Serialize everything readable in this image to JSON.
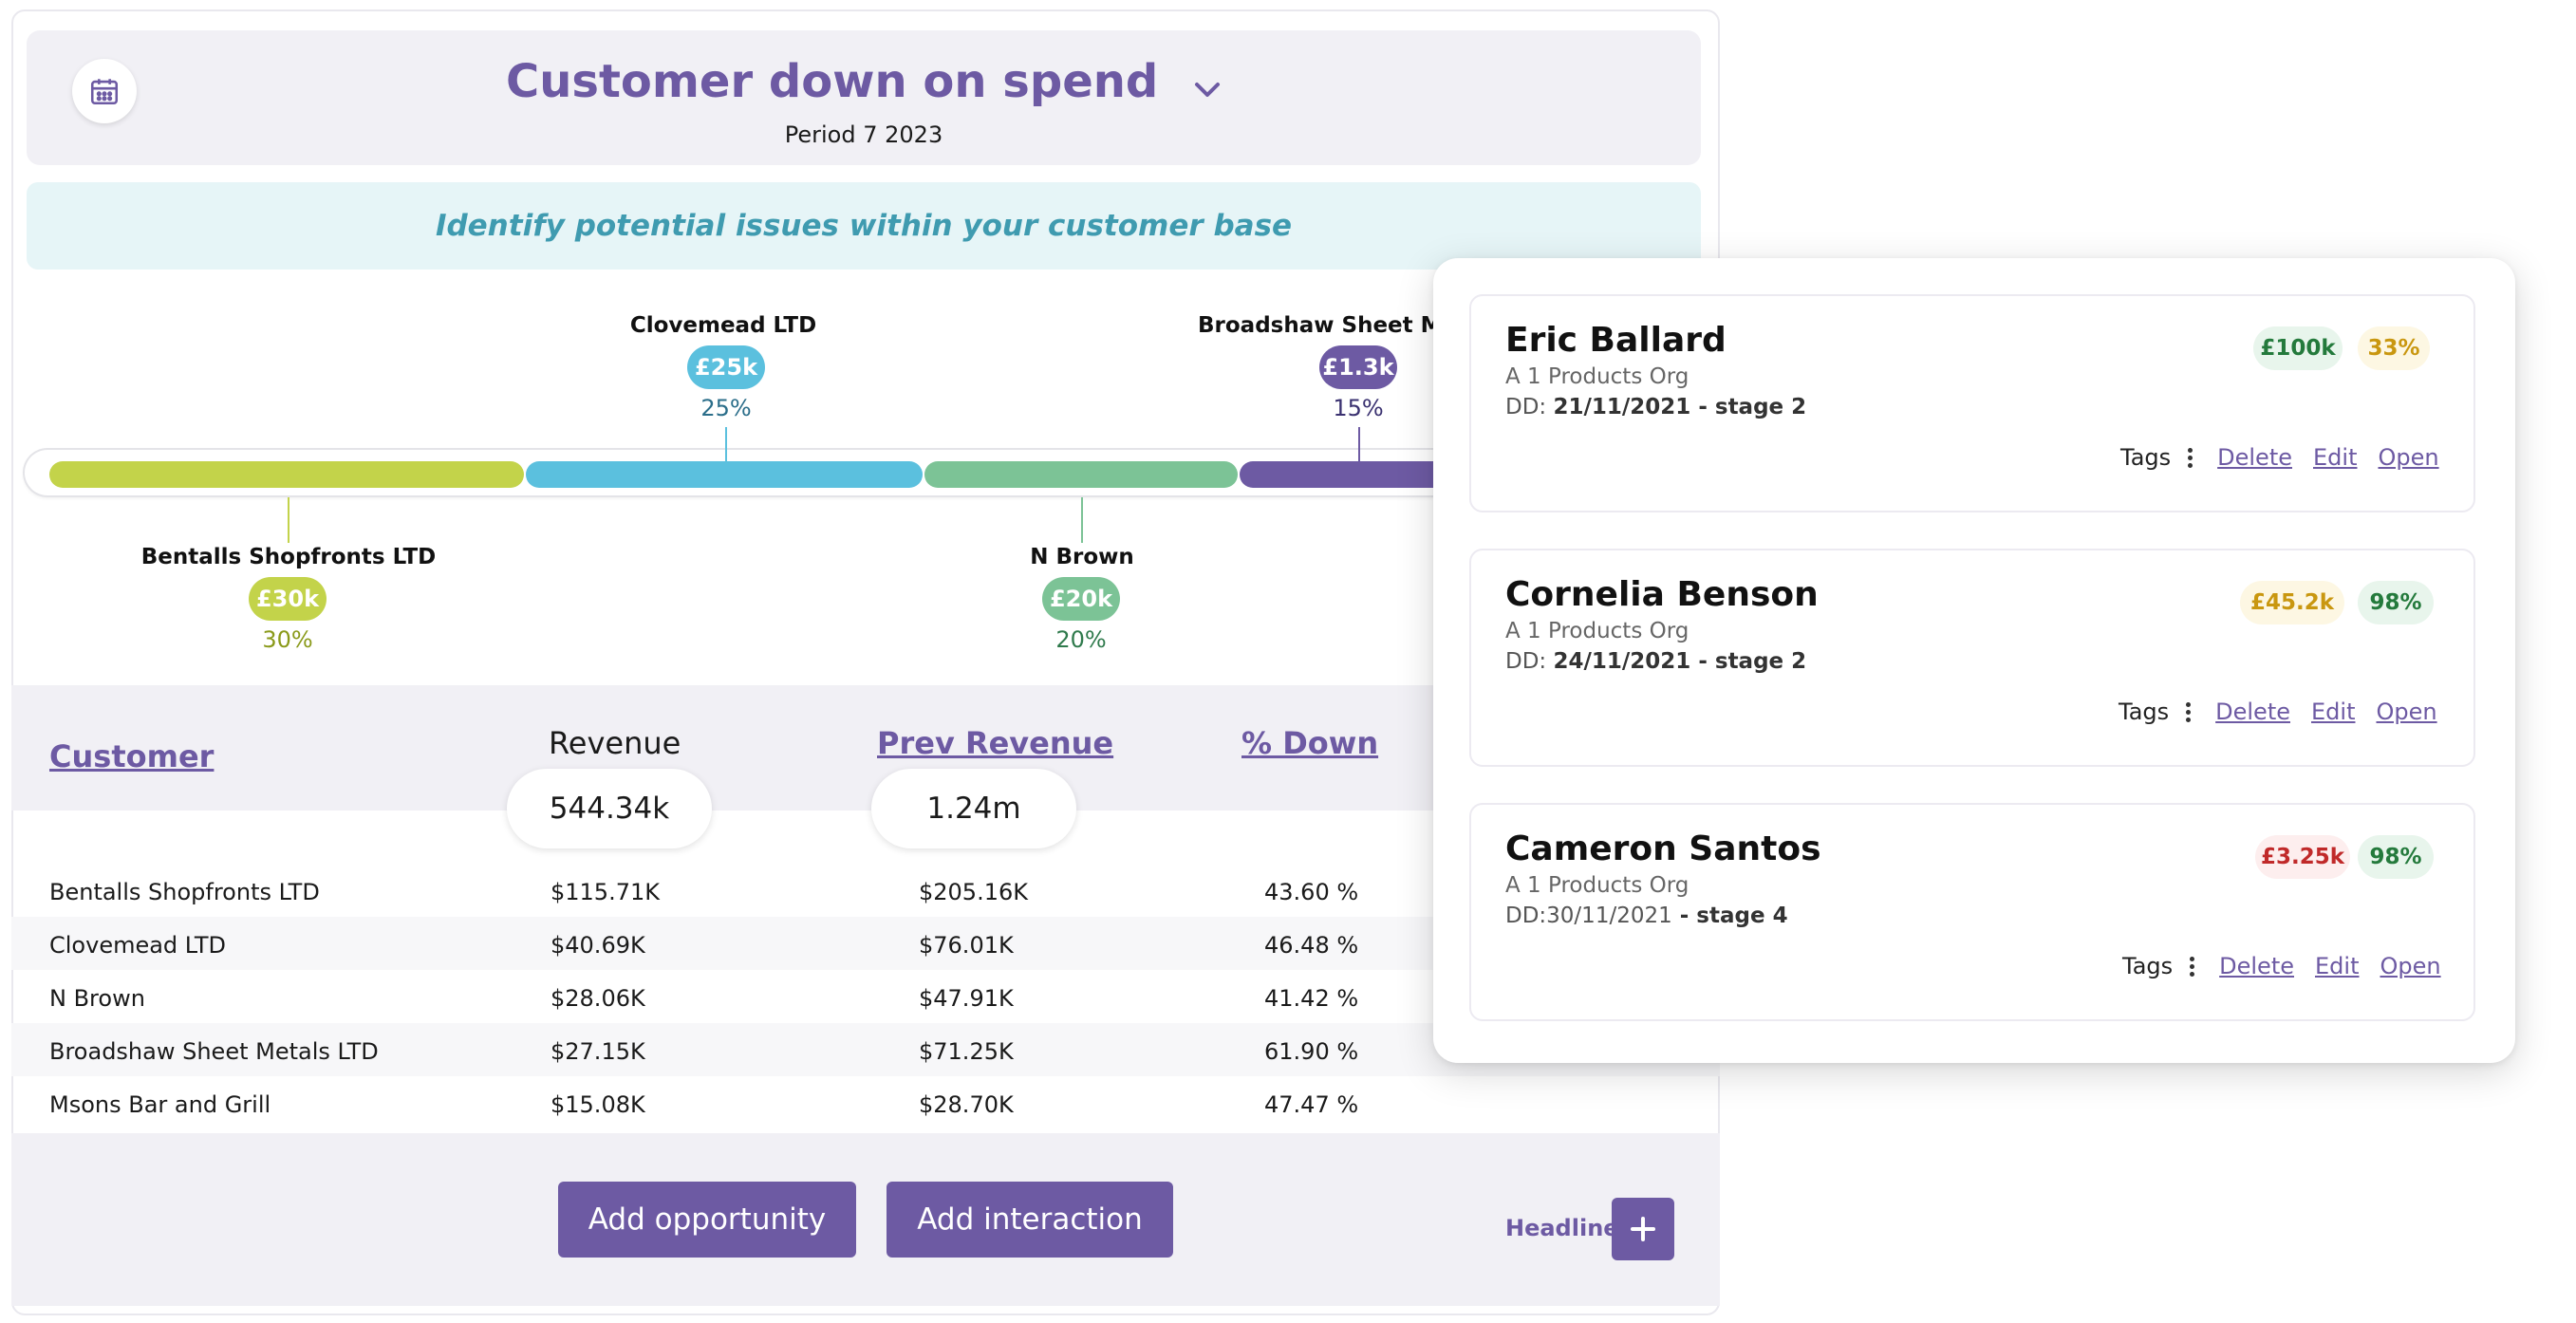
{
  "header": {
    "title": "Customer down on spend",
    "subtitle": "Period 7 2023"
  },
  "banner": {
    "text": "Identify potential issues within your customer base"
  },
  "timeline": {
    "segments": [
      {
        "name": "Bentalls Shopfronts LTD",
        "amount": "£30k",
        "percent": "30%",
        "color": "#c3d34a"
      },
      {
        "name": "Clovemead LTD",
        "amount": "£25k",
        "percent": "25%",
        "color": "#5bc0de"
      },
      {
        "name": "N Brown",
        "amount": "£20k",
        "percent": "20%",
        "color": "#7cc396"
      },
      {
        "name": "Broadshaw Sheet Met",
        "amount": "£1.3k",
        "percent": "15%",
        "color": "#6d5aa3"
      }
    ]
  },
  "table": {
    "headers": {
      "customer": "Customer",
      "revenue": "Revenue",
      "prev_revenue": "Prev Revenue",
      "pct_down": "% Down"
    },
    "totals": {
      "revenue": "544.34k",
      "prev_revenue": "1.24m"
    },
    "rows": [
      {
        "customer": "Bentalls Shopfronts LTD",
        "revenue": "$115.71K",
        "prev": "$205.16K",
        "down": "43.60 %"
      },
      {
        "customer": "Clovemead LTD",
        "revenue": "$40.69K",
        "prev": "$76.01K",
        "down": "46.48 %"
      },
      {
        "customer": "N Brown",
        "revenue": "$28.06K",
        "prev": "$47.91K",
        "down": "41.42 %"
      },
      {
        "customer": "Broadshaw Sheet Metals LTD",
        "revenue": "$27.15K",
        "prev": "$71.25K",
        "down": "61.90 %"
      },
      {
        "customer": "Msons Bar and Grill",
        "revenue": "$15.08K",
        "prev": "$28.70K",
        "down": "47.47 %"
      }
    ]
  },
  "footer": {
    "add_opportunity": "Add opportunity",
    "add_interaction": "Add interaction",
    "headline": "Headline"
  },
  "contacts": [
    {
      "name": "Eric Ballard",
      "org": "A 1 Products Org",
      "dd_prefix": "DD: ",
      "dd_value": "21/11/2021 - stage 2",
      "badge1": "£100k",
      "badge2": "33%"
    },
    {
      "name": "Cornelia Benson",
      "org": "A 1 Products Org",
      "dd_prefix": "DD: ",
      "dd_value": "24/11/2021 - stage 2",
      "badge1": "£45.2k",
      "badge2": "98%"
    },
    {
      "name": "Cameron Santos",
      "org": "A 1 Products Org",
      "dd_prefix": "DD:30/11/2021",
      "dd_value": " - stage 4",
      "badge1": "£3.25k",
      "badge2": "98%"
    }
  ],
  "card_actions": {
    "tags": "Tags",
    "delete": "Delete",
    "edit": "Edit",
    "open": "Open"
  },
  "icons": {
    "calendar": "calendar-icon",
    "chevron": "chevron-down-icon",
    "plus": "plus-icon",
    "more": "more-vertical-icon"
  }
}
